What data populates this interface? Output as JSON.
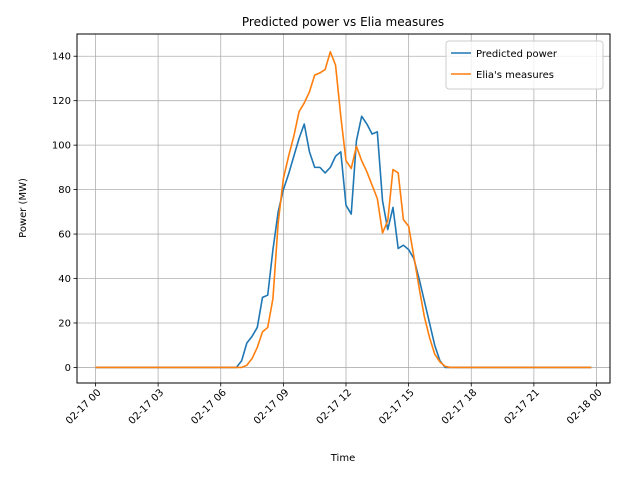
{
  "chart_data": {
    "type": "line",
    "title": "Predicted power vs Elia measures",
    "xlabel": "Time",
    "ylabel": "Power (MW)",
    "xlim": [
      "02-17 00",
      "02-18 00"
    ],
    "ylim": [
      -7,
      150
    ],
    "x_ticks": [
      "02-17 00",
      "02-17 03",
      "02-17 06",
      "02-17 09",
      "02-17 12",
      "02-17 15",
      "02-17 18",
      "02-17 21",
      "02-18 00"
    ],
    "y_ticks": [
      0,
      20,
      40,
      60,
      80,
      100,
      120,
      140
    ],
    "grid": true,
    "legend_position": "top-right",
    "series": [
      {
        "name": "Predicted power",
        "color": "#1f77b4",
        "points": [
          [
            "02-17 00:00",
            0
          ],
          [
            "02-17 06:45",
            0
          ],
          [
            "02-17 07:00",
            3
          ],
          [
            "02-17 07:15",
            11
          ],
          [
            "02-17 07:30",
            14
          ],
          [
            "02-17 07:45",
            18
          ],
          [
            "02-17 08:00",
            31.5
          ],
          [
            "02-17 08:15",
            32.5
          ],
          [
            "02-17 08:30",
            53
          ],
          [
            "02-17 08:45",
            70
          ],
          [
            "02-17 09:00",
            80
          ],
          [
            "02-17 09:15",
            87
          ],
          [
            "02-17 09:30",
            95
          ],
          [
            "02-17 09:45",
            103
          ],
          [
            "02-17 10:00",
            109.5
          ],
          [
            "02-17 10:15",
            97
          ],
          [
            "02-17 10:30",
            90
          ],
          [
            "02-17 10:45",
            90
          ],
          [
            "02-17 11:00",
            87.5
          ],
          [
            "02-17 11:15",
            90
          ],
          [
            "02-17 11:30",
            95
          ],
          [
            "02-17 11:45",
            97
          ],
          [
            "02-17 12:00",
            73
          ],
          [
            "02-17 12:15",
            69
          ],
          [
            "02-17 12:30",
            102
          ],
          [
            "02-17 12:45",
            113
          ],
          [
            "02-17 13:00",
            109.5
          ],
          [
            "02-17 13:15",
            105
          ],
          [
            "02-17 13:30",
            106
          ],
          [
            "02-17 13:45",
            75
          ],
          [
            "02-17 14:00",
            62
          ],
          [
            "02-17 14:15",
            72
          ],
          [
            "02-17 14:30",
            53.5
          ],
          [
            "02-17 14:45",
            55
          ],
          [
            "02-17 15:00",
            53
          ],
          [
            "02-17 15:15",
            49
          ],
          [
            "02-17 15:30",
            40
          ],
          [
            "02-17 15:45",
            30
          ],
          [
            "02-17 16:00",
            20
          ],
          [
            "02-17 16:15",
            10
          ],
          [
            "02-17 16:30",
            3
          ],
          [
            "02-17 16:45",
            0
          ],
          [
            "02-17 23:45",
            0
          ]
        ]
      },
      {
        "name": "Elia's measures",
        "color": "#ff7f0e",
        "points": [
          [
            "02-17 00:00",
            0
          ],
          [
            "02-17 07:00",
            0
          ],
          [
            "02-17 07:15",
            1
          ],
          [
            "02-17 07:30",
            4
          ],
          [
            "02-17 07:45",
            9
          ],
          [
            "02-17 08:00",
            16
          ],
          [
            "02-17 08:15",
            18
          ],
          [
            "02-17 08:30",
            31
          ],
          [
            "02-17 08:45",
            65
          ],
          [
            "02-17 09:00",
            85
          ],
          [
            "02-17 09:15",
            95
          ],
          [
            "02-17 09:30",
            104
          ],
          [
            "02-17 09:45",
            115
          ],
          [
            "02-17 10:00",
            119
          ],
          [
            "02-17 10:15",
            124
          ],
          [
            "02-17 10:30",
            131.5
          ],
          [
            "02-17 10:45",
            132.5
          ],
          [
            "02-17 11:00",
            134
          ],
          [
            "02-17 11:15",
            142
          ],
          [
            "02-17 11:30",
            136
          ],
          [
            "02-17 11:45",
            113
          ],
          [
            "02-17 12:00",
            93
          ],
          [
            "02-17 12:15",
            89.5
          ],
          [
            "02-17 12:30",
            99.5
          ],
          [
            "02-17 12:45",
            93
          ],
          [
            "02-17 13:00",
            88
          ],
          [
            "02-17 13:15",
            82
          ],
          [
            "02-17 13:30",
            76
          ],
          [
            "02-17 13:45",
            60.5
          ],
          [
            "02-17 14:00",
            66
          ],
          [
            "02-17 14:15",
            89
          ],
          [
            "02-17 14:30",
            87.5
          ],
          [
            "02-17 14:45",
            66.5
          ],
          [
            "02-17 15:00",
            63.5
          ],
          [
            "02-17 15:15",
            50
          ],
          [
            "02-17 15:30",
            36
          ],
          [
            "02-17 15:45",
            23
          ],
          [
            "02-17 16:00",
            13.5
          ],
          [
            "02-17 16:15",
            6
          ],
          [
            "02-17 16:30",
            2.5
          ],
          [
            "02-17 16:45",
            0.5
          ],
          [
            "02-17 17:00",
            0
          ],
          [
            "02-17 23:45",
            0
          ]
        ]
      }
    ]
  }
}
